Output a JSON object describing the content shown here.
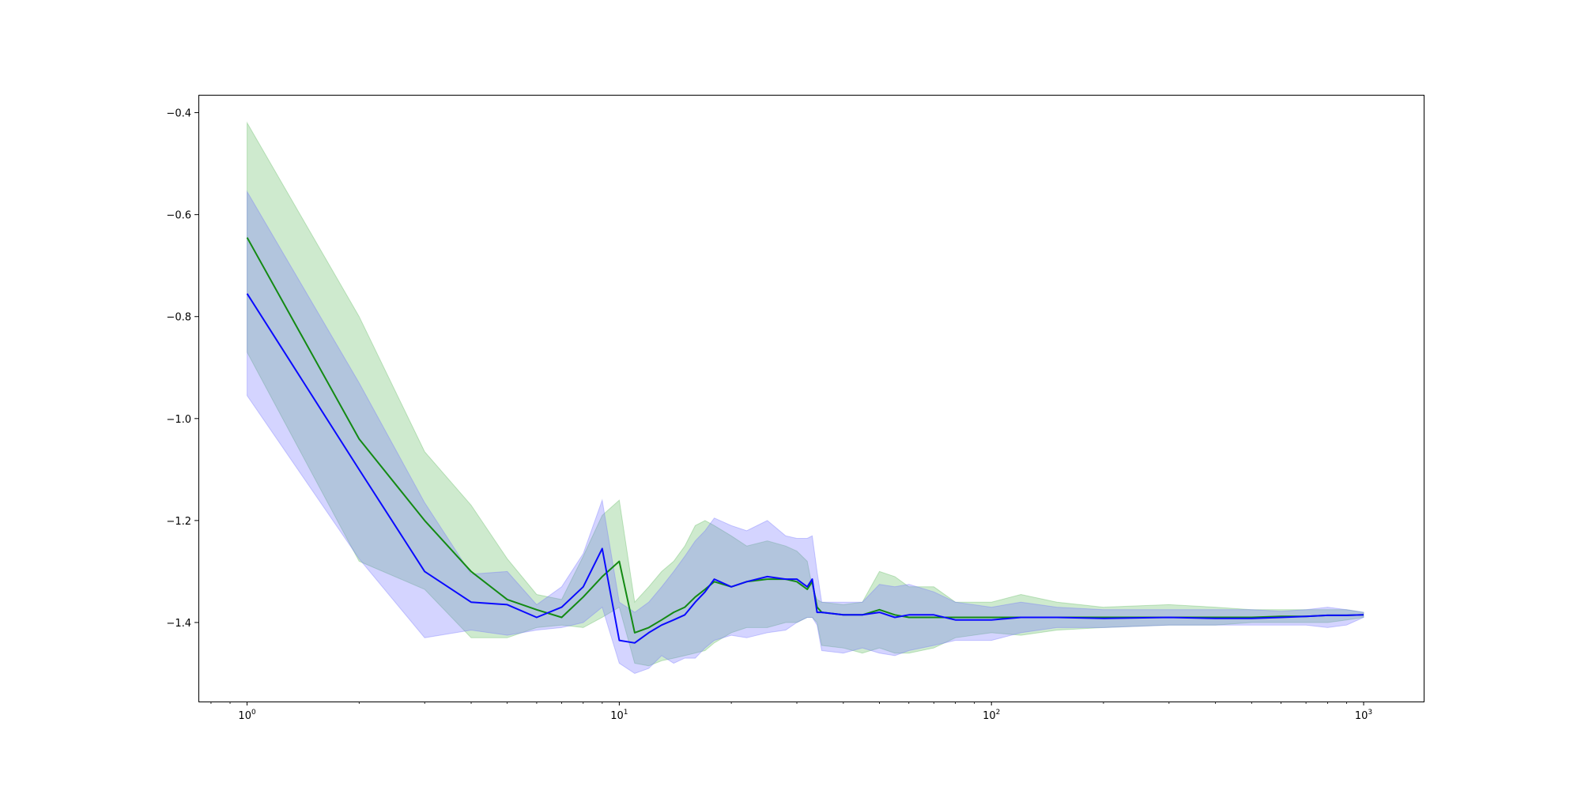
{
  "chart_data": {
    "type": "line",
    "xscale": "log",
    "xlim": [
      0.74,
      1450
    ],
    "ylim": [
      -1.555,
      -0.365
    ],
    "grid": false,
    "title": "",
    "xlabel": "",
    "ylabel": "",
    "yticks": [
      -1.4,
      -1.2,
      -1.0,
      -0.8,
      -0.6,
      -0.4
    ],
    "ytick_labels": [
      "−1.4",
      "−1.2",
      "−1.0",
      "−0.8",
      "−0.6",
      "−0.4"
    ],
    "xticks": [
      1,
      10,
      100,
      1000
    ],
    "xtick_labels": [
      {
        "base": "10",
        "exp": "0"
      },
      {
        "base": "10",
        "exp": "1"
      },
      {
        "base": "10",
        "exp": "2"
      },
      {
        "base": "10",
        "exp": "3"
      }
    ],
    "colors": {
      "series_green": "#138a13",
      "series_blue": "#0a0aff",
      "band_green": "#5cb85c",
      "band_blue": "#6f6fff"
    },
    "series": [
      {
        "color": "#138a13",
        "band_color": "#5cb85c",
        "x": [
          1,
          2,
          3,
          4,
          5,
          6,
          7,
          8,
          9,
          10,
          11,
          12,
          13,
          14,
          15,
          16,
          17,
          18,
          20,
          22,
          25,
          28,
          30,
          32,
          33,
          34,
          35,
          40,
          45,
          50,
          55,
          60,
          70,
          80,
          100,
          120,
          150,
          200,
          300,
          400,
          500,
          600,
          700,
          800,
          900,
          1000
        ],
        "y": [
          -0.645,
          -1.04,
          -1.2,
          -1.3,
          -1.355,
          -1.375,
          -1.39,
          -1.35,
          -1.31,
          -1.28,
          -1.42,
          -1.41,
          -1.395,
          -1.38,
          -1.37,
          -1.35,
          -1.335,
          -1.32,
          -1.33,
          -1.32,
          -1.315,
          -1.315,
          -1.32,
          -1.335,
          -1.32,
          -1.37,
          -1.38,
          -1.385,
          -1.385,
          -1.375,
          -1.385,
          -1.39,
          -1.39,
          -1.39,
          -1.39,
          -1.39,
          -1.39,
          -1.39,
          -1.39,
          -1.39,
          -1.39,
          -1.388,
          -1.388,
          -1.386,
          -1.386,
          -1.385
        ],
        "upper": [
          -0.42,
          -0.8,
          -1.065,
          -1.17,
          -1.275,
          -1.345,
          -1.355,
          -1.27,
          -1.19,
          -1.16,
          -1.36,
          -1.33,
          -1.3,
          -1.28,
          -1.25,
          -1.21,
          -1.2,
          -1.21,
          -1.23,
          -1.25,
          -1.24,
          -1.25,
          -1.26,
          -1.28,
          -1.33,
          -1.355,
          -1.36,
          -1.365,
          -1.36,
          -1.3,
          -1.31,
          -1.33,
          -1.33,
          -1.36,
          -1.36,
          -1.345,
          -1.36,
          -1.37,
          -1.365,
          -1.37,
          -1.375,
          -1.375,
          -1.375,
          -1.375,
          -1.375,
          -1.38
        ],
        "lower": [
          -0.87,
          -1.28,
          -1.335,
          -1.43,
          -1.43,
          -1.41,
          -1.405,
          -1.41,
          -1.39,
          -1.37,
          -1.48,
          -1.485,
          -1.475,
          -1.47,
          -1.465,
          -1.46,
          -1.455,
          -1.44,
          -1.42,
          -1.41,
          -1.41,
          -1.4,
          -1.4,
          -1.39,
          -1.39,
          -1.4,
          -1.445,
          -1.45,
          -1.46,
          -1.45,
          -1.46,
          -1.46,
          -1.45,
          -1.43,
          -1.42,
          -1.425,
          -1.415,
          -1.41,
          -1.405,
          -1.405,
          -1.4,
          -1.4,
          -1.4,
          -1.4,
          -1.395,
          -1.39
        ]
      },
      {
        "color": "#0a0aff",
        "band_color": "#6f6fff",
        "x": [
          1,
          2,
          3,
          4,
          5,
          6,
          7,
          8,
          9,
          10,
          11,
          12,
          13,
          14,
          15,
          16,
          17,
          18,
          20,
          22,
          25,
          28,
          30,
          32,
          33,
          34,
          35,
          40,
          45,
          50,
          55,
          60,
          70,
          80,
          100,
          120,
          150,
          200,
          300,
          400,
          500,
          600,
          700,
          800,
          900,
          1000
        ],
        "y": [
          -0.755,
          -1.1,
          -1.3,
          -1.36,
          -1.365,
          -1.39,
          -1.37,
          -1.33,
          -1.255,
          -1.435,
          -1.44,
          -1.42,
          -1.405,
          -1.395,
          -1.385,
          -1.36,
          -1.34,
          -1.315,
          -1.33,
          -1.32,
          -1.31,
          -1.315,
          -1.315,
          -1.33,
          -1.315,
          -1.38,
          -1.38,
          -1.385,
          -1.385,
          -1.38,
          -1.39,
          -1.385,
          -1.385,
          -1.395,
          -1.395,
          -1.39,
          -1.39,
          -1.392,
          -1.39,
          -1.392,
          -1.392,
          -1.39,
          -1.388,
          -1.386,
          -1.386,
          -1.385
        ],
        "upper": [
          -0.555,
          -0.93,
          -1.165,
          -1.305,
          -1.3,
          -1.365,
          -1.33,
          -1.265,
          -1.16,
          -1.36,
          -1.38,
          -1.36,
          -1.33,
          -1.3,
          -1.27,
          -1.24,
          -1.22,
          -1.195,
          -1.21,
          -1.22,
          -1.2,
          -1.23,
          -1.235,
          -1.235,
          -1.23,
          -1.3,
          -1.36,
          -1.36,
          -1.36,
          -1.325,
          -1.33,
          -1.325,
          -1.34,
          -1.36,
          -1.37,
          -1.36,
          -1.37,
          -1.375,
          -1.375,
          -1.375,
          -1.375,
          -1.378,
          -1.375,
          -1.37,
          -1.375,
          -1.38
        ],
        "lower": [
          -0.955,
          -1.275,
          -1.43,
          -1.415,
          -1.425,
          -1.415,
          -1.41,
          -1.4,
          -1.37,
          -1.48,
          -1.5,
          -1.49,
          -1.465,
          -1.48,
          -1.47,
          -1.47,
          -1.45,
          -1.435,
          -1.425,
          -1.43,
          -1.42,
          -1.415,
          -1.4,
          -1.39,
          -1.39,
          -1.405,
          -1.455,
          -1.46,
          -1.45,
          -1.46,
          -1.465,
          -1.455,
          -1.445,
          -1.435,
          -1.435,
          -1.42,
          -1.41,
          -1.41,
          -1.405,
          -1.405,
          -1.405,
          -1.405,
          -1.405,
          -1.41,
          -1.405,
          -1.39
        ]
      }
    ]
  }
}
